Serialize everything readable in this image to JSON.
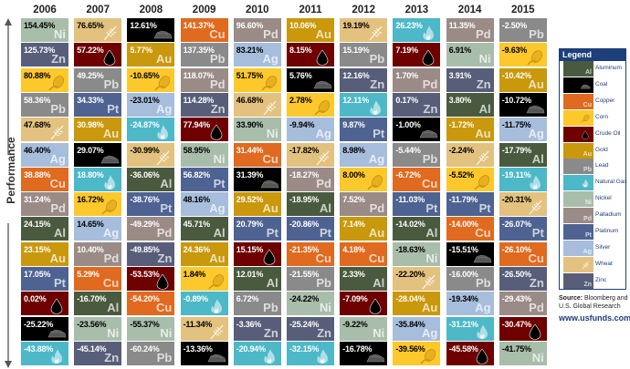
{
  "chart_data": {
    "type": "table",
    "title": "",
    "ylabel": "Performance",
    "years": [
      "2006",
      "2007",
      "2008",
      "2009",
      "2010",
      "2011",
      "2012",
      "2013",
      "2014",
      "2015"
    ],
    "columns": [
      [
        [
          "Ni",
          154.45
        ],
        [
          "Zn",
          125.73
        ],
        [
          "Corn",
          80.88
        ],
        [
          "Pb",
          58.36
        ],
        [
          "Wheat",
          47.68
        ],
        [
          "Ag",
          46.4
        ],
        [
          "Cu",
          38.88
        ],
        [
          "Pd",
          31.24
        ],
        [
          "Al",
          24.15
        ],
        [
          "Au",
          23.15
        ],
        [
          "Pt",
          17.05
        ],
        [
          "Oil",
          0.02
        ],
        [
          "Coal",
          -25.22
        ],
        [
          "Gas",
          -43.88
        ]
      ],
      [
        [
          "Wheat",
          76.65
        ],
        [
          "Oil",
          57.22
        ],
        [
          "Pb",
          49.25
        ],
        [
          "Pt",
          34.33
        ],
        [
          "Au",
          30.98
        ],
        [
          "Coal",
          29.07
        ],
        [
          "Gas",
          18.8
        ],
        [
          "Corn",
          16.72
        ],
        [
          "Ag",
          14.65
        ],
        [
          "Pd",
          10.4
        ],
        [
          "Cu",
          5.29
        ],
        [
          "Al",
          -16.7
        ],
        [
          "Ni",
          -23.56
        ],
        [
          "Zn",
          -45.14
        ]
      ],
      [
        [
          "Coal",
          12.61
        ],
        [
          "Au",
          5.77
        ],
        [
          "Corn",
          -10.65
        ],
        [
          "Ag",
          -23.01
        ],
        [
          "Gas",
          -24.87
        ],
        [
          "Wheat",
          -30.99
        ],
        [
          "Al",
          -36.06
        ],
        [
          "Pt",
          -38.76
        ],
        [
          "Pd",
          -49.29
        ],
        [
          "Zn",
          -49.85
        ],
        [
          "Oil",
          -53.53
        ],
        [
          "Cu",
          -54.2
        ],
        [
          "Ni",
          -55.37
        ],
        [
          "Pb",
          -60.24
        ]
      ],
      [
        [
          "Cu",
          141.37
        ],
        [
          "Pb",
          137.35
        ],
        [
          "Pd",
          118.07
        ],
        [
          "Zn",
          114.28
        ],
        [
          "Oil",
          77.94
        ],
        [
          "Ni",
          58.95
        ],
        [
          "Pt",
          56.82
        ],
        [
          "Ag",
          48.16
        ],
        [
          "Al",
          45.71
        ],
        [
          "Au",
          24.36
        ],
        [
          "Corn",
          1.84
        ],
        [
          "Gas",
          -0.89
        ],
        [
          "Wheat",
          -11.34
        ],
        [
          "Coal",
          -13.36
        ]
      ],
      [
        [
          "Pd",
          96.6
        ],
        [
          "Ag",
          83.21
        ],
        [
          "Corn",
          51.75
        ],
        [
          "Wheat",
          46.68
        ],
        [
          "Ni",
          33.9
        ],
        [
          "Cu",
          31.44
        ],
        [
          "Coal",
          31.39
        ],
        [
          "Au",
          29.52
        ],
        [
          "Pt",
          20.79
        ],
        [
          "Oil",
          15.15
        ],
        [
          "Al",
          12.01
        ],
        [
          "Pb",
          6.72
        ],
        [
          "Zn",
          -3.36
        ],
        [
          "Gas",
          -20.94
        ]
      ],
      [
        [
          "Au",
          10.06
        ],
        [
          "Oil",
          8.15
        ],
        [
          "Coal",
          5.76
        ],
        [
          "Corn",
          2.78
        ],
        [
          "Ag",
          -9.94
        ],
        [
          "Wheat",
          -17.82
        ],
        [
          "Pd",
          -18.27
        ],
        [
          "Al",
          -18.95
        ],
        [
          "Pt",
          -20.86
        ],
        [
          "Cu",
          -21.35
        ],
        [
          "Pb",
          -21.55
        ],
        [
          "Ni",
          -24.22
        ],
        [
          "Zn",
          -25.24
        ],
        [
          "Gas",
          -32.15
        ]
      ],
      [
        [
          "Wheat",
          19.19
        ],
        [
          "Pb",
          15.19
        ],
        [
          "Zn",
          12.16
        ],
        [
          "Gas",
          12.11
        ],
        [
          "Pt",
          9.87
        ],
        [
          "Ag",
          8.98
        ],
        [
          "Corn",
          8.0
        ],
        [
          "Pd",
          7.52
        ],
        [
          "Au",
          7.14
        ],
        [
          "Cu",
          4.18
        ],
        [
          "Al",
          2.33
        ],
        [
          "Oil",
          -7.09
        ],
        [
          "Ni",
          -9.22
        ],
        [
          "Coal",
          -16.78
        ]
      ],
      [
        [
          "Gas",
          26.23
        ],
        [
          "Oil",
          7.19
        ],
        [
          "Pd",
          1.7
        ],
        [
          "Zn",
          0.17
        ],
        [
          "Coal",
          -1.0
        ],
        [
          "Pb",
          -5.44
        ],
        [
          "Cu",
          -6.72
        ],
        [
          "Pt",
          -11.03
        ],
        [
          "Al",
          -14.02
        ],
        [
          "Ni",
          -18.63
        ],
        [
          "Wheat",
          -22.2
        ],
        [
          "Au",
          -28.04
        ],
        [
          "Ag",
          -35.84
        ],
        [
          "Corn",
          -39.56
        ]
      ],
      [
        [
          "Pd",
          11.35
        ],
        [
          "Ni",
          6.91
        ],
        [
          "Zn",
          3.91
        ],
        [
          "Al",
          3.8
        ],
        [
          "Au",
          -1.72
        ],
        [
          "Wheat",
          -2.24
        ],
        [
          "Corn",
          -5.52
        ],
        [
          "Pt",
          -11.79
        ],
        [
          "Cu",
          -14.0
        ],
        [
          "Coal",
          -15.51
        ],
        [
          "Pb",
          -16.0
        ],
        [
          "Ag",
          -19.34
        ],
        [
          "Gas",
          -31.21
        ],
        [
          "Oil",
          -45.58
        ]
      ],
      [
        [
          "Pb",
          -2.5
        ],
        [
          "Corn",
          -9.63
        ],
        [
          "Au",
          -10.42
        ],
        [
          "Coal",
          -10.72
        ],
        [
          "Ag",
          -11.75
        ],
        [
          "Al",
          -17.79
        ],
        [
          "Gas",
          -19.11
        ],
        [
          "Wheat",
          -20.31
        ],
        [
          "Pt",
          -26.07
        ],
        [
          "Cu",
          -26.1
        ],
        [
          "Zn",
          -26.5
        ],
        [
          "Pd",
          -29.43
        ],
        [
          "Oil",
          -30.47
        ],
        [
          "Ni",
          -41.75
        ]
      ]
    ],
    "commodities": {
      "Al": {
        "name": "Aluminum",
        "symbol": "Al",
        "color": "#4a5a3f",
        "text": "#fff"
      },
      "Coal": {
        "name": "Coal",
        "icon": "coal-icon",
        "color": "#000000",
        "text": "#fff"
      },
      "Cu": {
        "name": "Copper",
        "symbol": "Cu",
        "color": "#e06a1f",
        "text": "#fff"
      },
      "Corn": {
        "name": "Corn",
        "icon": "corn-icon",
        "color": "#fcc82c",
        "text": "#000"
      },
      "Oil": {
        "name": "Crude Oil",
        "icon": "oil-drop-icon",
        "color": "#6e0000",
        "text": "#fff"
      },
      "Au": {
        "name": "Gold",
        "symbol": "Au",
        "color": "#c9980c",
        "text": "#fff"
      },
      "Pb": {
        "name": "Lead",
        "symbol": "Pb",
        "color": "#8a8a8a",
        "text": "#fff"
      },
      "Gas": {
        "name": "Natural Gas",
        "icon": "flame-icon",
        "color": "#4db8c8",
        "text": "#fff"
      },
      "Ni": {
        "name": "Nickel",
        "symbol": "Ni",
        "color": "#a9bdab",
        "text": "#000"
      },
      "Pd": {
        "name": "Palladium",
        "symbol": "Pd",
        "color": "#9a8b87",
        "text": "#fff"
      },
      "Pt": {
        "name": "Platinum",
        "symbol": "Pt",
        "color": "#4e6391",
        "text": "#fff"
      },
      "Ag": {
        "name": "Silver",
        "symbol": "Ag",
        "color": "#a7bddc",
        "text": "#000"
      },
      "Wheat": {
        "name": "Wheat",
        "icon": "wheat-icon",
        "color": "#e3c27f",
        "text": "#000"
      },
      "Zn": {
        "name": "Zinc",
        "symbol": "Zn",
        "color": "#585e79",
        "text": "#fff"
      }
    },
    "legend_order": [
      "Al",
      "Coal",
      "Cu",
      "Corn",
      "Oil",
      "Au",
      "Pb",
      "Gas",
      "Ni",
      "Pd",
      "Pt",
      "Ag",
      "Wheat",
      "Zn"
    ]
  },
  "legend": {
    "title": "Legend"
  },
  "source": {
    "label": "Source:",
    "text": "Bloomberg and U.S. Global Research"
  },
  "url": "www.usfunds.com",
  "colors": {
    "accent": "#1d3f7a"
  }
}
